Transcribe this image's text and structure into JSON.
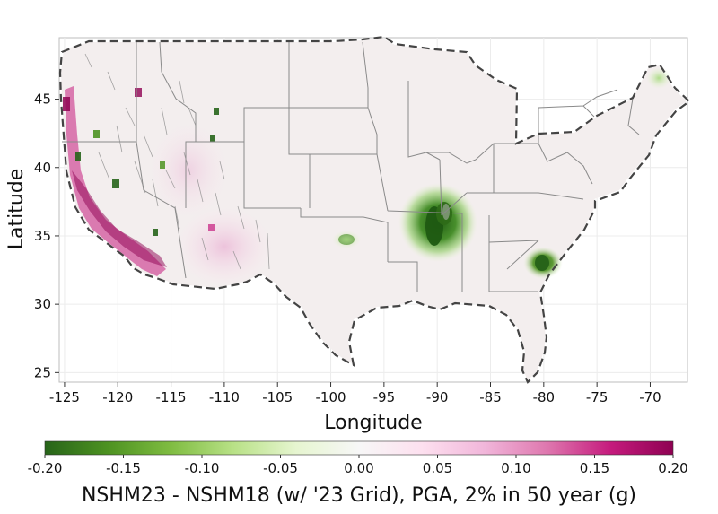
{
  "map": {
    "xlabel": "Longitude",
    "ylabel": "Latitude",
    "x_ticks": [
      "-125",
      "-120",
      "-115",
      "-110",
      "-105",
      "-100",
      "-95",
      "-90",
      "-85",
      "-80",
      "-75",
      "-70"
    ],
    "y_ticks": [
      "25",
      "30",
      "35",
      "40",
      "45"
    ],
    "x_range": [
      -125.5,
      -66.5
    ],
    "y_range": [
      24.3,
      49.5
    ],
    "grid": true,
    "region": "Conterminous United States",
    "colors": {
      "land": "#f3eeee",
      "state_border": "#8a8a8a",
      "outline_dash": "#444444",
      "fault_lines": "#888888"
    }
  },
  "colorbar": {
    "title": "NSHM23 - NSHM18 (w/ '23 Grid), PGA, 2% in 50 year (g)",
    "ticks": [
      "-0.20",
      "-0.15",
      "-0.10",
      "-0.05",
      "0.00",
      "0.05",
      "0.10",
      "0.15",
      "0.20"
    ],
    "range": [
      -0.2,
      0.2
    ],
    "colormap": "PiYG",
    "stops": [
      "#276419",
      "#4d9221",
      "#7fbc41",
      "#b8e186",
      "#e6f5d0",
      "#f7f7f7",
      "#fde0ef",
      "#f1b6da",
      "#de77ae",
      "#c51b7d",
      "#8e0152"
    ]
  }
}
